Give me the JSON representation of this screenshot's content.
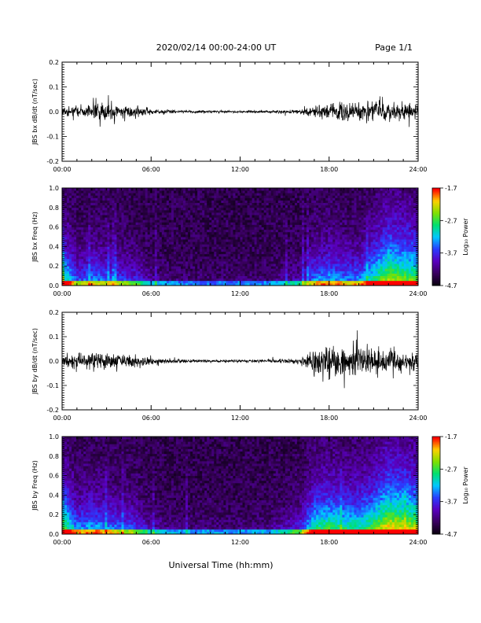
{
  "header": {
    "title": "2020/02/14  00:00-24:00 UT",
    "page": "Page 1/1"
  },
  "xlabel": "Universal Time (hh:mm)",
  "colors": {
    "trace": "#000000",
    "colormap": [
      "#0a0010",
      "#3a0060",
      "#5a00c0",
      "#2a3cff",
      "#00c8ff",
      "#00e070",
      "#80e000",
      "#ffd000",
      "#ff0000"
    ]
  },
  "chart_data": [
    {
      "type": "line",
      "ylabel": "JBS bx dB/dt (nT/sec)",
      "xlim": [
        0,
        24
      ],
      "ylim": [
        -0.2,
        0.2
      ],
      "x_ticks": [
        "00:00",
        "06:00",
        "12:00",
        "18:00",
        "24:00"
      ],
      "y_ticks": [
        "-0.2",
        "-0.1",
        "0.0",
        "0.1",
        "0.2"
      ],
      "amplitude_envelope": {
        "hours": [
          0,
          1,
          2,
          2.7,
          3,
          4,
          5,
          6,
          8,
          10,
          12,
          14,
          16,
          17,
          18,
          19,
          20,
          21,
          22,
          23,
          24
        ],
        "amplitude": [
          0.02,
          0.025,
          0.03,
          0.06,
          0.04,
          0.03,
          0.025,
          0.012,
          0.006,
          0.005,
          0.005,
          0.005,
          0.01,
          0.025,
          0.04,
          0.04,
          0.045,
          0.05,
          0.045,
          0.035,
          0.03
        ]
      }
    },
    {
      "type": "heatmap",
      "ylabel": "JBS bx Freq (Hz)",
      "xlim": [
        0,
        24
      ],
      "ylim": [
        0,
        1.0
      ],
      "x_ticks": [
        "00:00",
        "06:00",
        "12:00",
        "18:00",
        "24:00"
      ],
      "y_ticks": [
        "0.0",
        "0.2",
        "0.4",
        "0.6",
        "0.8",
        "1.0"
      ],
      "colorbar": {
        "label": "Log₁₀ Power",
        "min": -4.7,
        "max": -1.7,
        "ticks": [
          "-1.7",
          "-2.7",
          "-3.7",
          "-4.7"
        ]
      },
      "activity": {
        "hours": [
          0,
          0.5,
          1,
          2,
          3,
          4,
          5,
          6,
          8,
          10,
          12,
          14,
          16,
          17,
          18,
          19,
          20,
          21,
          22,
          23,
          24
        ],
        "level": [
          0.7,
          0.55,
          0.35,
          0.45,
          0.4,
          0.35,
          0.3,
          0.15,
          0.08,
          0.07,
          0.07,
          0.08,
          0.2,
          0.45,
          0.5,
          0.45,
          0.45,
          0.65,
          0.85,
          0.8,
          0.75
        ]
      }
    },
    {
      "type": "line",
      "ylabel": "JBS by dB/dt (nT/sec)",
      "xlim": [
        0,
        24
      ],
      "ylim": [
        -0.2,
        0.2
      ],
      "x_ticks": [
        "00:00",
        "06:00",
        "12:00",
        "18:00",
        "24:00"
      ],
      "y_ticks": [
        "-0.2",
        "-0.1",
        "0.0",
        "0.1",
        "0.2"
      ],
      "amplitude_envelope": {
        "hours": [
          0,
          1,
          2,
          3,
          4,
          5,
          6,
          8,
          10,
          12,
          14,
          16,
          17,
          18,
          19,
          20,
          21,
          22,
          23,
          24
        ],
        "amplitude": [
          0.03,
          0.035,
          0.04,
          0.035,
          0.03,
          0.03,
          0.015,
          0.008,
          0.006,
          0.006,
          0.007,
          0.015,
          0.05,
          0.075,
          0.07,
          0.075,
          0.07,
          0.06,
          0.05,
          0.05
        ]
      }
    },
    {
      "type": "heatmap",
      "ylabel": "JBS by Freq (Hz)",
      "xlim": [
        0,
        24
      ],
      "ylim": [
        0,
        1.0
      ],
      "x_ticks": [
        "00:00",
        "06:00",
        "12:00",
        "18:00",
        "24:00"
      ],
      "y_ticks": [
        "0.0",
        "0.2",
        "0.4",
        "0.6",
        "0.8",
        "1.0"
      ],
      "colorbar": {
        "label": "Log₁₀ Power",
        "min": -4.7,
        "max": -1.7,
        "ticks": [
          "-1.7",
          "-2.7",
          "-3.7",
          "-4.7"
        ]
      },
      "activity": {
        "hours": [
          0,
          0.5,
          1,
          2,
          3,
          4,
          5,
          6,
          8,
          10,
          12,
          14,
          16,
          17,
          18,
          19,
          20,
          21,
          22,
          23,
          24
        ],
        "level": [
          0.8,
          0.65,
          0.45,
          0.5,
          0.45,
          0.4,
          0.35,
          0.18,
          0.1,
          0.1,
          0.09,
          0.12,
          0.3,
          0.65,
          0.7,
          0.65,
          0.65,
          0.75,
          0.95,
          0.9,
          0.85
        ]
      }
    }
  ]
}
